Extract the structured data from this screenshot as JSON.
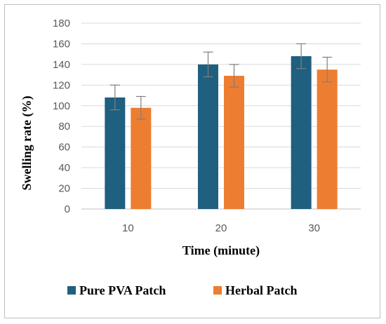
{
  "chart_data": {
    "type": "bar",
    "categories": [
      "10",
      "20",
      "30"
    ],
    "series": [
      {
        "name": "Pure PVA Patch",
        "color": "#1f5f7f",
        "values": [
          108,
          140,
          148
        ],
        "errors": [
          12,
          12,
          12
        ]
      },
      {
        "name": "Herbal Patch",
        "color": "#ed7d31",
        "values": [
          98,
          129,
          135
        ],
        "errors": [
          11,
          11,
          12
        ]
      }
    ],
    "title": "",
    "xlabel": "Time (minute)",
    "ylabel": "Swelling rate (%)",
    "ylim": [
      0,
      180
    ],
    "yticks": [
      "0",
      "20",
      "40",
      "60",
      "80",
      "100",
      "120",
      "140",
      "160",
      "180"
    ],
    "grid": true,
    "legend_position": "bottom"
  }
}
